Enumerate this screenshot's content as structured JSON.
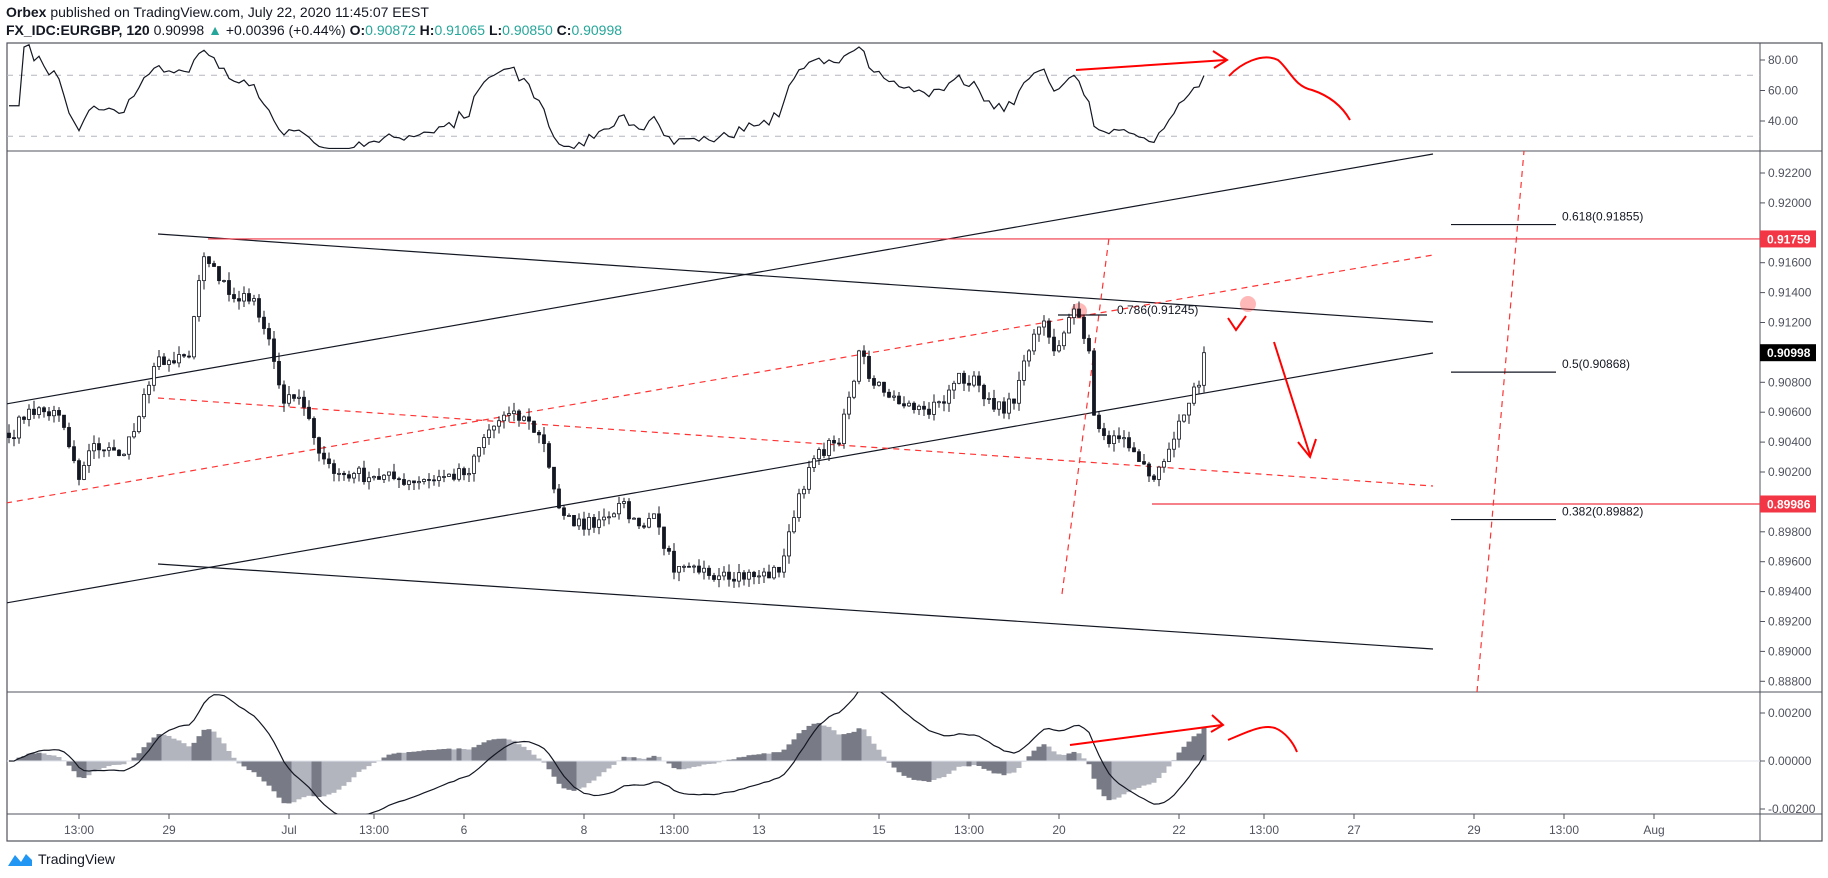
{
  "header": {
    "publisher": "Orbex",
    "published_text": "published on TradingView.com, July 22, 2020 11:45:07 EEST",
    "symbol": "FX_IDC:EURGBP, 120",
    "last": "0.90998",
    "change": "+0.00396 (+0.44%)",
    "o_label": "O:",
    "o": "0.90872",
    "h_label": "H:",
    "h": "0.91065",
    "l_label": "L:",
    "l": "0.90850",
    "c_label": "C:",
    "c": "0.90998",
    "up_icon": "triangle-up-icon"
  },
  "colors": {
    "up_triangle": "#26a69a",
    "annotation": "#ff0000",
    "level_label": "#f23645",
    "last_label": "#000000",
    "hist_dark": "#787b86",
    "hist_light": "#b2b5be"
  },
  "footer": {
    "logo_text": "TradingView"
  },
  "chart_data": [
    {
      "type": "candlestick",
      "pane": "price",
      "interval": "120",
      "ylim": [
        0.8875,
        0.9235
      ],
      "y_ticks": [
        "0.92200",
        "0.92000",
        "0.91600",
        "0.91400",
        "0.91200",
        "0.90800",
        "0.90600",
        "0.90400",
        "0.90200",
        "0.89800",
        "0.89600",
        "0.89400",
        "0.89200",
        "0.89000",
        "0.88800"
      ],
      "price_labels": [
        {
          "value": "0.91759",
          "color": "#f23645"
        },
        {
          "value": "0.90998",
          "color": "#000000"
        },
        {
          "value": "0.89986",
          "color": "#f23645"
        }
      ],
      "fib_levels": [
        {
          "label": "0.618(0.91855)",
          "value": 0.91855
        },
        {
          "label": "0.5(0.90868)",
          "value": 0.90868
        },
        {
          "label": "0.382(0.89882)",
          "value": 0.89882
        },
        {
          "label": "0.786(0.91245)",
          "value": 0.91245
        }
      ],
      "horizontal_levels": [
        0.91759,
        0.89986
      ],
      "approx_close_path": [
        [
          0,
          0.9043
        ],
        [
          4,
          0.9062
        ],
        [
          10,
          0.9058
        ],
        [
          14,
          0.9015
        ],
        [
          17,
          0.9039
        ],
        [
          22,
          0.9031
        ],
        [
          25,
          0.9047
        ],
        [
          28,
          0.9078
        ],
        [
          30,
          0.9097
        ],
        [
          33,
          0.9093
        ],
        [
          36,
          0.9097
        ],
        [
          38,
          0.9148
        ],
        [
          39,
          0.9164
        ],
        [
          42,
          0.9148
        ],
        [
          45,
          0.9136
        ],
        [
          49,
          0.9136
        ],
        [
          52,
          0.9109
        ],
        [
          55,
          0.9066
        ],
        [
          58,
          0.907
        ],
        [
          61,
          0.9043
        ],
        [
          65,
          0.9019
        ],
        [
          69,
          0.9019
        ],
        [
          73,
          0.9017
        ],
        [
          78,
          0.9015
        ],
        [
          83,
          0.9015
        ],
        [
          87,
          0.9017
        ],
        [
          92,
          0.9019
        ],
        [
          95,
          0.9043
        ],
        [
          99,
          0.9058
        ],
        [
          104,
          0.9054
        ],
        [
          107,
          0.9039
        ],
        [
          110,
          0.8996
        ],
        [
          113,
          0.8984
        ],
        [
          118,
          0.8988
        ],
        [
          122,
          0.8999
        ],
        [
          126,
          0.8984
        ],
        [
          129,
          0.8992
        ],
        [
          133,
          0.8953
        ],
        [
          138,
          0.8953
        ],
        [
          143,
          0.8953
        ],
        [
          149,
          0.895
        ],
        [
          154,
          0.8953
        ],
        [
          156,
          0.898
        ],
        [
          160,
          0.9023
        ],
        [
          162,
          0.9035
        ],
        [
          166,
          0.9039
        ],
        [
          168,
          0.907
        ],
        [
          170,
          0.9101
        ],
        [
          173,
          0.9078
        ],
        [
          176,
          0.907
        ],
        [
          180,
          0.9066
        ],
        [
          183,
          0.9062
        ],
        [
          187,
          0.9066
        ],
        [
          190,
          0.9086
        ],
        [
          194,
          0.9078
        ],
        [
          197,
          0.9062
        ],
        [
          201,
          0.9066
        ],
        [
          204,
          0.9101
        ],
        [
          207,
          0.9121
        ],
        [
          209,
          0.9101
        ],
        [
          211,
          0.9113
        ],
        [
          213,
          0.9129
        ],
        [
          216,
          0.9101
        ],
        [
          217,
          0.9058
        ],
        [
          220,
          0.9039
        ],
        [
          223,
          0.9043
        ],
        [
          226,
          0.9027
        ],
        [
          229,
          0.9015
        ],
        [
          231,
          0.9027
        ],
        [
          234,
          0.9054
        ],
        [
          236,
          0.9066
        ],
        [
          238,
          0.9078
        ],
        [
          239,
          0.90998
        ]
      ]
    },
    {
      "type": "line",
      "pane": "rsi",
      "y_ticks": [
        "80.00",
        "60.00",
        "40.00"
      ],
      "bands": [
        70,
        30
      ]
    },
    {
      "type": "bar+line",
      "pane": "macd",
      "y_ticks": [
        "0.00200",
        "0.00000",
        "-0.00200"
      ]
    }
  ],
  "time_axis": [
    {
      "label": "13:00",
      "bar": 14
    },
    {
      "label": "29",
      "bar": 32
    },
    {
      "label": "Jul",
      "bar": 56
    },
    {
      "label": "13:00",
      "bar": 73
    },
    {
      "label": "6",
      "bar": 91
    },
    {
      "label": "8",
      "bar": 115
    },
    {
      "label": "13:00",
      "bar": 133
    },
    {
      "label": "13",
      "bar": 150
    },
    {
      "label": "15",
      "bar": 174
    },
    {
      "label": "13:00",
      "bar": 192
    },
    {
      "label": "20",
      "bar": 210
    },
    {
      "label": "22",
      "bar": 234
    },
    {
      "label": "13:00",
      "bar": 251
    },
    {
      "label": "27",
      "bar": 269
    },
    {
      "label": "29",
      "bar": 293
    },
    {
      "label": "13:00",
      "bar": 311
    },
    {
      "label": "Aug",
      "bar": 329
    }
  ]
}
